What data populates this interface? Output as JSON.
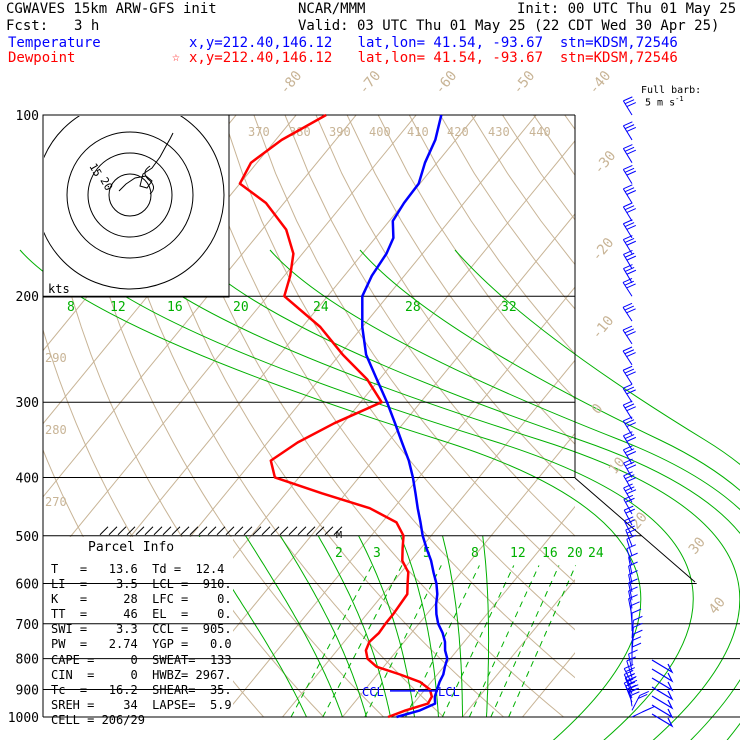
{
  "header": {
    "model": "CGWAVES 15km ARW-GFS init",
    "org": "NCAR/MMM",
    "init": "Init: 00 UTC Thu 01 May 25",
    "fcst_label": "Fcst:",
    "fcst_value": "3 h",
    "valid": "Valid: 03 UTC Thu 01 May 25 (22 CDT Wed 30 Apr 25)",
    "temp_label": "Temperature",
    "temp_info": "x,y=212.40,146.12   lat,lon= 41.54, -93.67  stn=KDSM,72546",
    "dew_label": "Dewpoint",
    "dew_marker": "☆",
    "dew_info": "x,y=212.40,146.12   lat,lon= 41.54, -93.67  stn=KDSM,72546",
    "barb_note_1": "Full barb:",
    "barb_note_2": "5 m s",
    "barb_note_exp": "-1"
  },
  "colors": {
    "temperature": "#0000ff",
    "dewpoint": "#ff0000",
    "isotherm": "#c8b496",
    "dry_adiabat": "#c8b496",
    "mixing_ratio": "#00b000",
    "moist_adiabat": "#00b000",
    "theta_e_label": "#c8b496"
  },
  "hodograph": {
    "kts_label": "kts",
    "ring_labels": [
      "15",
      "20"
    ]
  },
  "parcel": {
    "title": "Parcel Info",
    "rows": [
      "T   =   13.6  Td =  12.4",
      "LI  =    3.5  LCL =  910.",
      "K   =     28  LFC =    0.",
      "TT  =     46  EL  =    0.",
      "SWI =    3.3  CCL =  905.",
      "PW  =   2.74  YGP =   0.0",
      "CAPE =     0  SWEAT=  133",
      "CIN  =     0  HWBZ= 2967.",
      "Tc  =   16.2  SHEAR=  35.",
      "SREH =    34  LAPSE=  5.9",
      "CELL = 206/29"
    ]
  },
  "markers": {
    "ccl": "CCL",
    "lcl": "LCL",
    "m": "M"
  },
  "chart_data": {
    "type": "line",
    "title": "",
    "yaxis": {
      "scale": "log",
      "direction": "inverted",
      "ylim": [
        1000,
        100
      ],
      "tick_labels": [
        "100",
        "200",
        "300",
        "400",
        "500",
        "600",
        "700",
        "800",
        "900",
        "1000"
      ]
    },
    "isotherm_labels": [
      "-80",
      "-70",
      "-60",
      "-50",
      "-40",
      "-30",
      "-20",
      "-10",
      "0",
      "10",
      "20",
      "30",
      "40"
    ],
    "theta_e_labels": [
      "370",
      "380",
      "390",
      "400",
      "410",
      "420",
      "430",
      "440",
      "290",
      "280",
      "270"
    ],
    "mixing_ratio_labels_upper": [
      "8",
      "12",
      "16",
      "20",
      "24",
      "28",
      "32"
    ],
    "mixing_ratio_labels_lower": [
      "2",
      "3",
      "5",
      "8",
      "12",
      "16",
      "20",
      "24"
    ],
    "series": [
      {
        "name": "Temperature",
        "color": "#0000ff",
        "points": [
          [
            1000,
            9
          ],
          [
            975,
            12
          ],
          [
            950,
            13.6
          ],
          [
            925,
            12.6
          ],
          [
            900,
            12
          ],
          [
            875,
            11.4
          ],
          [
            850,
            11
          ],
          [
            825,
            10.2
          ],
          [
            800,
            9.5
          ],
          [
            775,
            8
          ],
          [
            750,
            6.8
          ],
          [
            725,
            5.2
          ],
          [
            700,
            3.2
          ],
          [
            675,
            1.6
          ],
          [
            650,
            0.2
          ],
          [
            625,
            -1
          ],
          [
            600,
            -2.6
          ],
          [
            575,
            -4.6
          ],
          [
            550,
            -6.6
          ],
          [
            525,
            -9
          ],
          [
            500,
            -11.4
          ],
          [
            475,
            -13.6
          ],
          [
            450,
            -16
          ],
          [
            425,
            -18.4
          ],
          [
            400,
            -21
          ],
          [
            375,
            -24
          ],
          [
            350,
            -27.6
          ],
          [
            325,
            -31.4
          ],
          [
            300,
            -35.6
          ],
          [
            275,
            -40.4
          ],
          [
            250,
            -45.6
          ],
          [
            225,
            -50
          ],
          [
            200,
            -54.2
          ],
          [
            185,
            -55.4
          ],
          [
            170,
            -56
          ],
          [
            160,
            -57
          ],
          [
            150,
            -59.4
          ],
          [
            140,
            -60
          ],
          [
            130,
            -60.2
          ],
          [
            120,
            -62
          ],
          [
            110,
            -63.4
          ],
          [
            100,
            -65.8
          ]
        ]
      },
      {
        "name": "Dewpoint",
        "color": "#ff0000",
        "points": [
          [
            1000,
            7.6
          ],
          [
            975,
            9.6
          ],
          [
            950,
            12.4
          ],
          [
            925,
            12.1
          ],
          [
            900,
            10.8
          ],
          [
            875,
            8.2
          ],
          [
            850,
            3.8
          ],
          [
            825,
            -1.2
          ],
          [
            800,
            -3.8
          ],
          [
            775,
            -5.2
          ],
          [
            750,
            -5.8
          ],
          [
            725,
            -5.4
          ],
          [
            700,
            -5.6
          ],
          [
            675,
            -5.6
          ],
          [
            650,
            -5.8
          ],
          [
            625,
            -6
          ],
          [
            600,
            -7.4
          ],
          [
            575,
            -8.8
          ],
          [
            550,
            -11.4
          ],
          [
            525,
            -13
          ],
          [
            500,
            -14.6
          ],
          [
            475,
            -17.6
          ],
          [
            450,
            -24
          ],
          [
            425,
            -34
          ],
          [
            400,
            -44
          ],
          [
            375,
            -47
          ],
          [
            350,
            -45
          ],
          [
            325,
            -41.5
          ],
          [
            300,
            -36.5
          ],
          [
            275,
            -42
          ],
          [
            250,
            -49.5
          ],
          [
            225,
            -57
          ],
          [
            200,
            -67.2
          ],
          [
            185,
            -69
          ],
          [
            170,
            -71.5
          ],
          [
            155,
            -76
          ],
          [
            140,
            -83
          ],
          [
            130,
            -90
          ],
          [
            120,
            -91
          ],
          [
            110,
            -89
          ],
          [
            100,
            -85
          ]
        ]
      }
    ],
    "wind_profile": [
      [
        1000,
        -4,
        1.5
      ],
      [
        975,
        -2,
        3
      ],
      [
        960,
        1,
        5
      ],
      [
        945,
        3,
        6
      ],
      [
        930,
        4,
        6
      ],
      [
        915,
        3,
        5.5
      ],
      [
        900,
        3,
        4.5
      ],
      [
        880,
        2,
        3
      ],
      [
        860,
        1,
        2.5
      ],
      [
        840,
        0.5,
        2
      ],
      [
        820,
        0,
        2
      ],
      [
        800,
        0,
        2
      ],
      [
        780,
        -0.2,
        2
      ],
      [
        760,
        -0.2,
        2
      ],
      [
        740,
        -0.2,
        2
      ],
      [
        720,
        0,
        2
      ],
      [
        700,
        0.2,
        2
      ],
      [
        680,
        0.5,
        2
      ],
      [
        660,
        0.5,
        2
      ],
      [
        640,
        0.5,
        2
      ],
      [
        620,
        0.5,
        2
      ],
      [
        600,
        0.5,
        2
      ],
      [
        580,
        0.5,
        2
      ],
      [
        560,
        1,
        2.5
      ],
      [
        540,
        1,
        2.5
      ],
      [
        520,
        1.5,
        3
      ],
      [
        500,
        2,
        3
      ],
      [
        480,
        2,
        3
      ],
      [
        460,
        2.5,
        3.5
      ],
      [
        440,
        3,
        4
      ],
      [
        420,
        3,
        4
      ],
      [
        400,
        3,
        4
      ],
      [
        380,
        3.5,
        4.5
      ],
      [
        360,
        3.5,
        4.5
      ],
      [
        340,
        4,
        5
      ],
      [
        320,
        4,
        5
      ],
      [
        300,
        4.5,
        5.5
      ],
      [
        280,
        4.5,
        5.5
      ],
      [
        260,
        5,
        6
      ],
      [
        240,
        5,
        6
      ],
      [
        220,
        5,
        6
      ],
      [
        200,
        5,
        6
      ],
      [
        190,
        5,
        6.5
      ],
      [
        180,
        5,
        6.5
      ],
      [
        170,
        5.5,
        7
      ],
      [
        160,
        5.5,
        7
      ],
      [
        150,
        5.5,
        7
      ],
      [
        140,
        5.5,
        7
      ],
      [
        130,
        5.5,
        7
      ],
      [
        120,
        5.5,
        7
      ],
      [
        110,
        5.5,
        7
      ],
      [
        100,
        5.5,
        7
      ]
    ]
  }
}
